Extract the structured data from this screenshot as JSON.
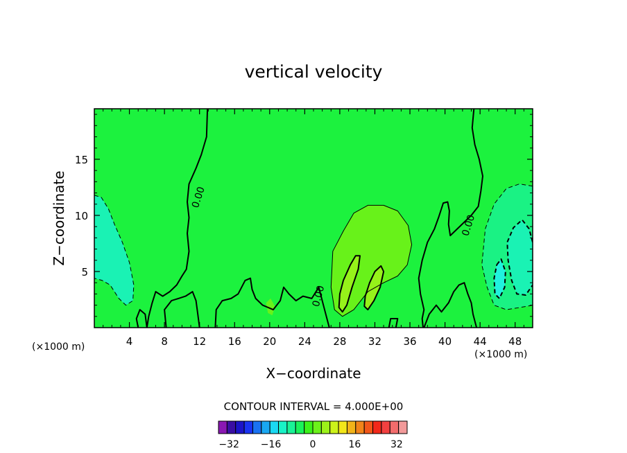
{
  "chart_data": {
    "type": "heatmap",
    "title": "vertical velocity",
    "xlabel": "X−coordinate",
    "ylabel": "Z−coordinate",
    "x_unit_label": "(×1000 m)",
    "x_unit_label_right": "(×1000 m)",
    "xlim": [
      0,
      50
    ],
    "ylim": [
      0,
      19.5
    ],
    "x_ticks": [
      4,
      8,
      12,
      16,
      20,
      24,
      28,
      32,
      36,
      40,
      44,
      48
    ],
    "x_tick_labels": [
      "4",
      "8",
      "12",
      "16",
      "20",
      "24",
      "28",
      "32",
      "36",
      "40",
      "44",
      "48"
    ],
    "y_ticks": [
      5,
      10,
      15
    ],
    "y_tick_labels": [
      "5",
      "10",
      "15"
    ],
    "background_value": 0,
    "contour_interval_text": "CONTOUR INTERVAL = 4.000E+00",
    "contour_labels": [
      {
        "text": "0.00",
        "x": 11.9,
        "y": 11.6,
        "angle": -72
      },
      {
        "text": "0.00",
        "x": 25.6,
        "y": 2.8,
        "angle": -75
      },
      {
        "text": "0.00",
        "x": 42.7,
        "y": 9.1,
        "angle": -72
      }
    ],
    "regions": [
      {
        "value": -8,
        "name": "left-downdraft",
        "points": [
          [
            0,
            11.8
          ],
          [
            0.8,
            11.6
          ],
          [
            1.6,
            10.6
          ],
          [
            2.3,
            9.2
          ],
          [
            3.2,
            7.6
          ],
          [
            4.0,
            5.8
          ],
          [
            4.5,
            3.8
          ],
          [
            4.4,
            2.4
          ],
          [
            3.6,
            2.0
          ],
          [
            2.8,
            2.6
          ],
          [
            1.8,
            3.8
          ],
          [
            0.9,
            4.2
          ],
          [
            0,
            4.4
          ]
        ]
      },
      {
        "value": 8,
        "name": "updraft-core",
        "points": [
          [
            27.2,
            6.8
          ],
          [
            28.4,
            8.6
          ],
          [
            29.6,
            10.2
          ],
          [
            31.2,
            10.9
          ],
          [
            33.0,
            10.9
          ],
          [
            34.6,
            10.4
          ],
          [
            35.8,
            9.1
          ],
          [
            36.2,
            7.4
          ],
          [
            35.7,
            5.6
          ],
          [
            34.6,
            4.6
          ],
          [
            33.0,
            4.0
          ],
          [
            31.2,
            3.2
          ],
          [
            29.6,
            1.6
          ],
          [
            28.3,
            1.0
          ],
          [
            27.4,
            1.6
          ],
          [
            27.0,
            3.6
          ]
        ]
      },
      {
        "value": 12,
        "name": "updraft-ridge-left",
        "points": [
          [
            28.4,
            4.2
          ],
          [
            29.2,
            5.6
          ],
          [
            29.8,
            6.4
          ],
          [
            30.3,
            6.4
          ],
          [
            30.1,
            5.2
          ],
          [
            29.4,
            3.6
          ],
          [
            28.8,
            2.0
          ],
          [
            28.3,
            1.4
          ],
          [
            27.9,
            1.8
          ],
          [
            28.0,
            3.0
          ]
        ]
      },
      {
        "value": 12,
        "name": "updraft-ridge-right",
        "points": [
          [
            30.9,
            2.8
          ],
          [
            31.4,
            4.0
          ],
          [
            32.0,
            5.0
          ],
          [
            32.7,
            5.5
          ],
          [
            33.0,
            5.0
          ],
          [
            32.6,
            3.6
          ],
          [
            31.9,
            2.4
          ],
          [
            31.2,
            1.6
          ],
          [
            30.8,
            1.9
          ]
        ]
      },
      {
        "value": 8,
        "name": "small-updraft",
        "points": [
          [
            19.6,
            2.2
          ],
          [
            20.1,
            2.6
          ],
          [
            20.6,
            1.9
          ],
          [
            20.3,
            1.1
          ],
          [
            19.8,
            1.3
          ]
        ]
      },
      {
        "value": -4,
        "name": "right-downdraft-outer",
        "points": [
          [
            44.6,
            8.8
          ],
          [
            45.6,
            11.0
          ],
          [
            47.0,
            12.4
          ],
          [
            48.5,
            12.8
          ],
          [
            50,
            12.6
          ],
          [
            50,
            2.0
          ],
          [
            48.6,
            1.8
          ],
          [
            47.0,
            1.6
          ],
          [
            45.6,
            2.0
          ],
          [
            44.8,
            3.6
          ],
          [
            44.2,
            5.6
          ]
        ]
      },
      {
        "value": -8,
        "name": "right-downdraft-inner",
        "points": [
          [
            47.1,
            7.6
          ],
          [
            47.8,
            8.9
          ],
          [
            48.8,
            9.6
          ],
          [
            49.6,
            8.8
          ],
          [
            50,
            7.6
          ],
          [
            50,
            3.8
          ],
          [
            49.2,
            2.9
          ],
          [
            48.2,
            3.0
          ],
          [
            47.6,
            4.2
          ],
          [
            47.2,
            6.0
          ]
        ]
      },
      {
        "value": -12,
        "name": "right-downdraft-inner-2",
        "points": [
          [
            45.9,
            5.6
          ],
          [
            46.4,
            6.1
          ],
          [
            46.9,
            5.0
          ],
          [
            46.8,
            3.6
          ],
          [
            46.2,
            2.6
          ],
          [
            45.7,
            3.0
          ],
          [
            45.6,
            4.4
          ]
        ]
      }
    ],
    "contours": [
      {
        "value": 0,
        "style": "solid",
        "width": 2,
        "points": [
          [
            12.9,
            19.5
          ],
          [
            12.8,
            17.0
          ],
          [
            12.2,
            15.4
          ],
          [
            11.6,
            14.2
          ],
          [
            10.8,
            12.8
          ],
          [
            10.6,
            11.2
          ],
          [
            10.8,
            9.8
          ],
          [
            10.6,
            8.4
          ],
          [
            10.8,
            6.8
          ],
          [
            10.5,
            5.2
          ],
          [
            10.0,
            4.6
          ],
          [
            9.4,
            3.8
          ],
          [
            8.6,
            3.2
          ],
          [
            7.8,
            2.8
          ],
          [
            7.0,
            3.2
          ],
          [
            6.6,
            2.2
          ],
          [
            6.2,
            1.0
          ],
          [
            6.0,
            0
          ]
        ]
      },
      {
        "value": 0,
        "style": "solid",
        "width": 2,
        "points": [
          [
            43.3,
            19.5
          ],
          [
            43.1,
            17.8
          ],
          [
            43.4,
            16.3
          ],
          [
            43.9,
            15.0
          ],
          [
            44.3,
            13.5
          ],
          [
            44.1,
            12.2
          ],
          [
            43.8,
            10.8
          ],
          [
            43.0,
            10.0
          ],
          [
            41.8,
            9.1
          ],
          [
            40.6,
            8.2
          ],
          [
            40.4,
            9.2
          ],
          [
            40.5,
            10.4
          ],
          [
            40.3,
            11.2
          ],
          [
            39.8,
            11.1
          ],
          [
            39.3,
            9.9
          ],
          [
            38.8,
            8.8
          ],
          [
            38.0,
            7.6
          ],
          [
            37.4,
            6.0
          ],
          [
            37.0,
            4.4
          ],
          [
            37.2,
            3.0
          ],
          [
            37.6,
            1.6
          ],
          [
            37.4,
            0.8
          ],
          [
            37.5,
            0
          ]
        ]
      },
      {
        "value": 0,
        "style": "solid",
        "width": 2,
        "points": [
          [
            6.0,
            0
          ],
          [
            5.8,
            1.2
          ],
          [
            5.2,
            1.6
          ],
          [
            4.8,
            0.8
          ],
          [
            5.0,
            0
          ]
        ]
      },
      {
        "value": 0,
        "style": "solid",
        "width": 2,
        "points": [
          [
            13.8,
            0
          ],
          [
            13.9,
            1.6
          ],
          [
            14.6,
            2.4
          ],
          [
            15.6,
            2.6
          ],
          [
            16.4,
            3.0
          ],
          [
            17.2,
            4.2
          ],
          [
            17.8,
            4.4
          ],
          [
            18.0,
            3.4
          ],
          [
            18.4,
            2.6
          ],
          [
            19.2,
            2.0
          ],
          [
            20.4,
            1.6
          ],
          [
            21.2,
            2.4
          ],
          [
            21.6,
            3.6
          ],
          [
            22.2,
            3.0
          ],
          [
            23.0,
            2.4
          ],
          [
            23.8,
            2.8
          ],
          [
            24.8,
            2.6
          ],
          [
            25.6,
            3.6
          ],
          [
            26.0,
            2.4
          ],
          [
            26.4,
            1.2
          ],
          [
            26.8,
            0
          ]
        ]
      },
      {
        "value": 0,
        "style": "solid",
        "width": 2,
        "points": [
          [
            37.6,
            0
          ],
          [
            38.2,
            1.2
          ],
          [
            39.0,
            2.0
          ],
          [
            39.6,
            1.4
          ],
          [
            40.4,
            2.2
          ],
          [
            41.0,
            3.2
          ],
          [
            41.6,
            3.8
          ],
          [
            42.2,
            4.0
          ],
          [
            42.6,
            3.0
          ],
          [
            43.0,
            2.2
          ],
          [
            43.2,
            1.2
          ],
          [
            43.6,
            0
          ]
        ]
      },
      {
        "value": 0,
        "style": "solid",
        "width": 2,
        "points": [
          [
            8.2,
            0
          ],
          [
            8.0,
            1.6
          ],
          [
            8.8,
            2.4
          ],
          [
            9.6,
            2.6
          ],
          [
            10.4,
            2.8
          ],
          [
            11.2,
            3.2
          ],
          [
            11.6,
            2.4
          ],
          [
            11.8,
            1.2
          ],
          [
            12.0,
            0
          ]
        ]
      },
      {
        "value": 0,
        "style": "solid",
        "width": 2,
        "points": [
          [
            33.6,
            0
          ],
          [
            33.8,
            0.8
          ],
          [
            34.6,
            0.8
          ],
          [
            34.4,
            0
          ]
        ]
      },
      {
        "value": 4,
        "style": "solid",
        "width": 1,
        "points": [
          [
            27.2,
            6.8
          ],
          [
            28.4,
            8.6
          ],
          [
            29.6,
            10.2
          ],
          [
            31.2,
            10.9
          ],
          [
            33.0,
            10.9
          ],
          [
            34.6,
            10.4
          ],
          [
            35.8,
            9.1
          ],
          [
            36.2,
            7.4
          ],
          [
            35.7,
            5.6
          ],
          [
            34.6,
            4.6
          ],
          [
            33.0,
            4.0
          ],
          [
            31.2,
            3.2
          ],
          [
            29.6,
            1.6
          ],
          [
            28.3,
            1.0
          ],
          [
            27.4,
            1.6
          ],
          [
            27.0,
            3.6
          ],
          [
            27.2,
            6.8
          ]
        ]
      },
      {
        "value": 8,
        "style": "solid",
        "width": 2,
        "points": [
          [
            28.4,
            4.2
          ],
          [
            29.2,
            5.6
          ],
          [
            29.8,
            6.4
          ],
          [
            30.3,
            6.4
          ],
          [
            30.1,
            5.2
          ],
          [
            29.4,
            3.6
          ],
          [
            28.8,
            2.0
          ],
          [
            28.3,
            1.4
          ],
          [
            27.9,
            1.8
          ],
          [
            28.0,
            3.0
          ],
          [
            28.4,
            4.2
          ]
        ]
      },
      {
        "value": 8,
        "style": "solid",
        "width": 2,
        "points": [
          [
            30.9,
            2.8
          ],
          [
            31.4,
            4.0
          ],
          [
            32.0,
            5.0
          ],
          [
            32.7,
            5.5
          ],
          [
            33.0,
            5.0
          ],
          [
            32.6,
            3.6
          ],
          [
            31.9,
            2.4
          ],
          [
            31.2,
            1.6
          ],
          [
            30.8,
            1.9
          ],
          [
            30.9,
            2.8
          ]
        ]
      },
      {
        "value": -4,
        "style": "dashed",
        "width": 1,
        "points": [
          [
            0,
            11.8
          ],
          [
            0.8,
            11.6
          ],
          [
            1.6,
            10.6
          ],
          [
            2.3,
            9.2
          ],
          [
            3.2,
            7.6
          ],
          [
            4.0,
            5.8
          ],
          [
            4.5,
            3.8
          ],
          [
            4.4,
            2.4
          ],
          [
            3.6,
            2.0
          ],
          [
            2.8,
            2.6
          ],
          [
            1.8,
            3.8
          ],
          [
            0.9,
            4.2
          ],
          [
            0,
            4.4
          ]
        ]
      },
      {
        "value": -4,
        "style": "dashed",
        "width": 1,
        "points": [
          [
            50,
            12.6
          ],
          [
            48.5,
            12.8
          ],
          [
            47.0,
            12.4
          ],
          [
            45.6,
            11.0
          ],
          [
            44.6,
            8.8
          ],
          [
            44.2,
            5.6
          ],
          [
            44.8,
            3.6
          ],
          [
            45.6,
            2.0
          ],
          [
            47.0,
            1.6
          ],
          [
            48.6,
            1.8
          ],
          [
            50,
            2.0
          ]
        ]
      },
      {
        "value": -8,
        "style": "dashed",
        "width": 2,
        "points": [
          [
            50,
            7.6
          ],
          [
            49.6,
            8.8
          ],
          [
            48.8,
            9.6
          ],
          [
            47.8,
            8.9
          ],
          [
            47.1,
            7.6
          ],
          [
            47.2,
            6.0
          ],
          [
            47.6,
            4.2
          ],
          [
            48.2,
            3.0
          ],
          [
            49.2,
            2.9
          ],
          [
            50,
            3.8
          ]
        ]
      },
      {
        "value": -8,
        "style": "dashed",
        "width": 2,
        "points": [
          [
            45.9,
            5.6
          ],
          [
            46.4,
            6.1
          ],
          [
            46.9,
            5.0
          ],
          [
            46.8,
            3.6
          ],
          [
            46.2,
            2.6
          ],
          [
            45.7,
            3.0
          ],
          [
            45.6,
            4.4
          ],
          [
            45.9,
            5.6
          ]
        ]
      }
    ],
    "colorbar": {
      "min": -36,
      "max": 36,
      "step": 4,
      "colors": [
        "#8a18b2",
        "#3a0ea3",
        "#1c14c8",
        "#1a34f2",
        "#1a72f2",
        "#1aa8f2",
        "#1ad8f2",
        "#1af2c6",
        "#1af296",
        "#1af25a",
        "#3cf21a",
        "#6cf21a",
        "#9cf21a",
        "#ccf21a",
        "#f2e61a",
        "#f2b41a",
        "#f2841a",
        "#f2561a",
        "#f2281a",
        "#f24040",
        "#f26c6c",
        "#f29a9a"
      ],
      "tick_values": [
        -32,
        -16,
        0,
        16,
        32
      ],
      "tick_labels": [
        "−32",
        "−16",
        "0",
        "16",
        "32"
      ]
    },
    "value_colors": {
      "-12": "#20f2de",
      "-8": "#1af2b4",
      "-4": "#1af284",
      "0": "#1cf23e",
      "4": "#34f21a",
      "8": "#68f21a",
      "12": "#96f21a"
    }
  }
}
